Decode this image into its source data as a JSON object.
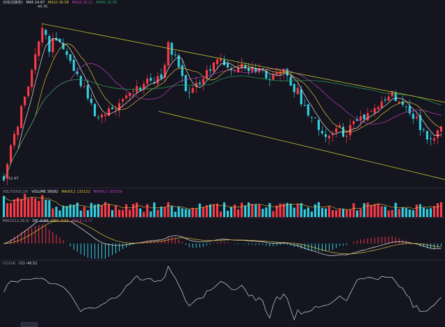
{
  "colors": {
    "background": "#14151e",
    "up": "#ff3b4a",
    "down": "#32d3e6",
    "channel": "#c8c832",
    "ma5": "#e8e8e8",
    "ma10": "#e0c040",
    "ma20": "#c040c0",
    "ma60": "#30a060",
    "dif": "#e8e8e8",
    "dea": "#e0c040",
    "cci": "#d8d8d8",
    "text": "#9a9aa6",
    "separator": "#2a2b38"
  },
  "headers": {
    "main": {
      "title": "日线(前复权)",
      "items": [
        {
          "text": "MA5 24.67",
          "color": "#e8e8e8"
        },
        {
          "text": "MA10 26.08",
          "color": "#e0c040"
        },
        {
          "text": "MA20 26.11",
          "color": "#c040c0"
        },
        {
          "text": "MA60 26.09",
          "color": "#30a060"
        }
      ]
    },
    "volume": {
      "items": [
        {
          "text": "VOL-TDX(5,10)",
          "color": "#9a9aa6"
        },
        {
          "text": "VOLUME 36082",
          "color": "#e8e8e8"
        },
        {
          "text": "MAVOL1 115122",
          "color": "#e0c040"
        },
        {
          "text": "MAVOL2 101519",
          "color": "#c040c0"
        }
      ]
    },
    "macd": {
      "items": [
        {
          "text": "MACD(12,26,9)",
          "color": "#9a9aa6"
        },
        {
          "text": "DIF -0.64",
          "color": "#e8e8e8"
        },
        {
          "text": "DEA -0.51",
          "color": "#e0c040"
        },
        {
          "text": "MACD -0.27",
          "color": "#c040c0"
        }
      ]
    },
    "cci": {
      "items": [
        {
          "text": "CCI(14)",
          "color": "#9a9aa6"
        },
        {
          "text": "CCI -46.52",
          "color": "#d8d8d8"
        }
      ]
    }
  },
  "chart_data": {
    "type": "candlestick",
    "bar_count": 126,
    "price_labels": {
      "high": "44.70",
      "low": "12.47"
    },
    "seed_note": "",
    "channel": {
      "upper_trendline": true,
      "lower_trendline": true
    }
  }
}
